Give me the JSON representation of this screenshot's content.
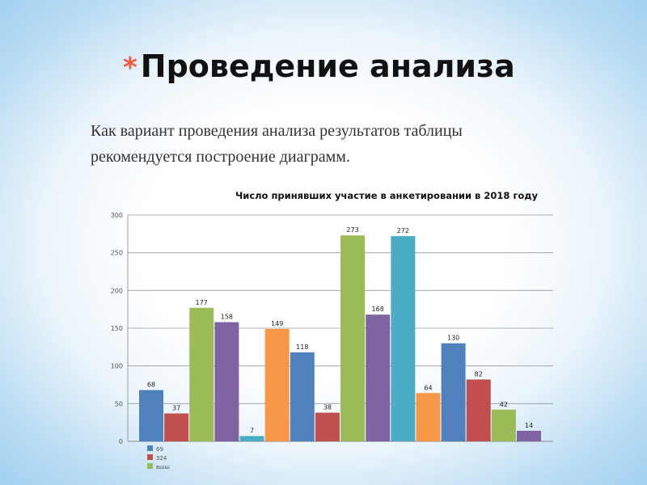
{
  "slide": {
    "bullet": "*",
    "title": "Проведение анализа",
    "body_lines": [
      "Как вариант проведения анализа результатов таблицы",
      "рекомендуется построение диаграмм."
    ]
  },
  "colors": {
    "background": "#ffffff",
    "bullet": "#f05a3a",
    "bar_blue": "#4f81bd",
    "bar_red": "#c0504d",
    "bar_green": "#9bbb59",
    "bar_purple": "#8064a2",
    "bar_teal": "#4bacc6",
    "bar_orange": "#f79646"
  },
  "chart_data": {
    "type": "bar",
    "title": "Число принявших участие в анкетировании в 2018 году",
    "ylim": [
      0,
      300
    ],
    "yticks": [
      0,
      50,
      100,
      150,
      200,
      250,
      300
    ],
    "grid": true,
    "bars": [
      {
        "value": 68,
        "color": "#4f81bd"
      },
      {
        "value": 37,
        "color": "#c0504d"
      },
      {
        "value": 177,
        "color": "#9bbb59"
      },
      {
        "value": 158,
        "color": "#8064a2"
      },
      {
        "value": 7,
        "color": "#4bacc6"
      },
      {
        "value": 149,
        "color": "#f79646"
      },
      {
        "value": 118,
        "color": "#4f81bd"
      },
      {
        "value": 38,
        "color": "#c0504d"
      },
      {
        "value": 273,
        "color": "#9bbb59"
      },
      {
        "value": 168,
        "color": "#8064a2"
      },
      {
        "value": 272,
        "color": "#4bacc6"
      },
      {
        "value": 64,
        "color": "#f79646"
      },
      {
        "value": 130,
        "color": "#4f81bd"
      },
      {
        "value": 82,
        "color": "#c0504d"
      },
      {
        "value": 42,
        "color": "#9bbb59"
      },
      {
        "value": 14,
        "color": "#8064a2"
      }
    ],
    "legend": [
      {
        "label": "69",
        "color": "#4f81bd"
      },
      {
        "label": "324",
        "color": "#c0504d"
      },
      {
        "label": "вшш",
        "color": "#9bbb59"
      }
    ],
    "legend_position": "bottom-left"
  }
}
